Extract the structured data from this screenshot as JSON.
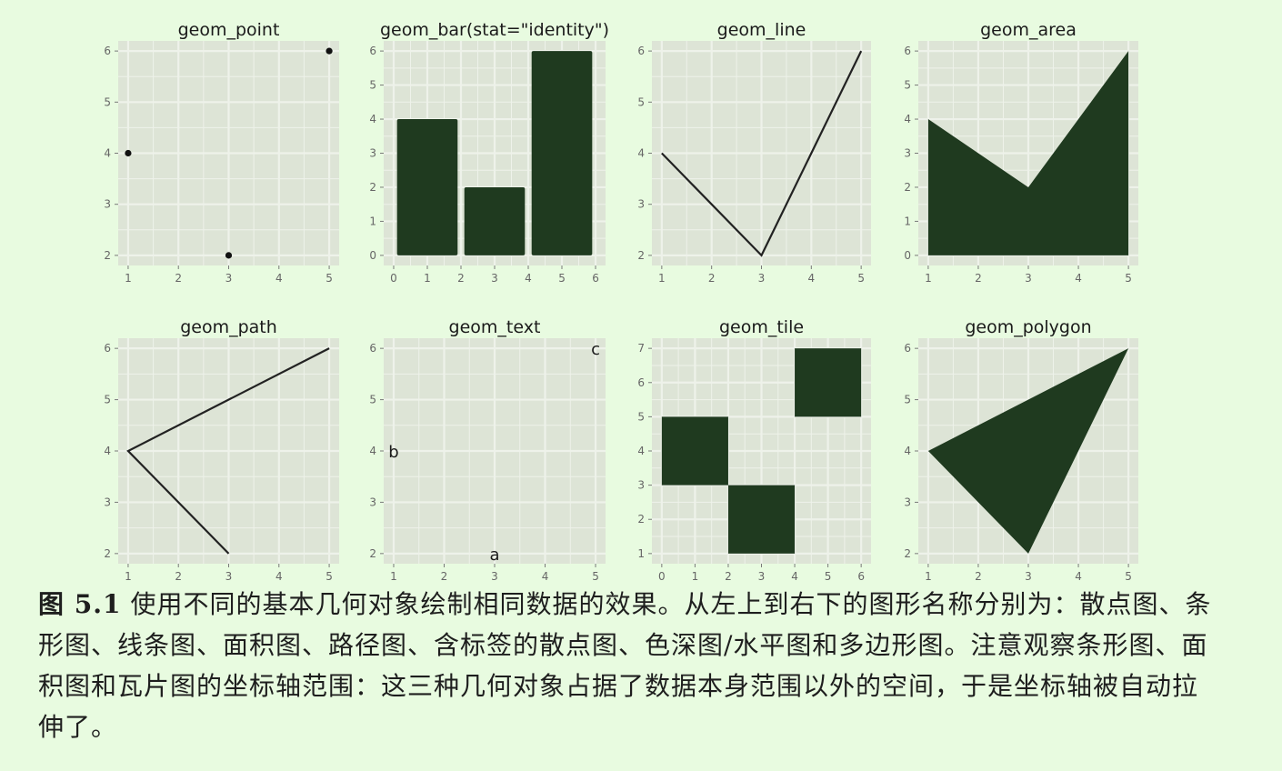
{
  "chart_data": [
    {
      "type": "scatter",
      "title": "geom_point",
      "x": [
        1,
        3,
        5
      ],
      "y": [
        4,
        2,
        6
      ],
      "xlim": [
        1,
        5
      ],
      "ylim": [
        2,
        6
      ],
      "xticks": [
        1,
        2,
        3,
        4,
        5
      ],
      "yticks": [
        2,
        3,
        4,
        5,
        6
      ],
      "grid": true
    },
    {
      "type": "bar",
      "title": "geom_bar(stat=\"identity\")",
      "x": [
        1,
        3,
        5
      ],
      "y": [
        4,
        2,
        6
      ],
      "xlim": [
        0,
        6
      ],
      "ylim": [
        0,
        6
      ],
      "xticks": [
        0,
        1,
        2,
        3,
        4,
        5,
        6
      ],
      "yticks": [
        0,
        1,
        2,
        3,
        4,
        5,
        6
      ],
      "grid": true
    },
    {
      "type": "line",
      "title": "geom_line",
      "x": [
        1,
        3,
        5
      ],
      "y": [
        4,
        2,
        6
      ],
      "xlim": [
        1,
        5
      ],
      "ylim": [
        2,
        6
      ],
      "xticks": [
        1,
        2,
        3,
        4,
        5
      ],
      "yticks": [
        2,
        3,
        4,
        5,
        6
      ],
      "grid": true
    },
    {
      "type": "area",
      "title": "geom_area",
      "x": [
        1,
        3,
        5
      ],
      "y": [
        4,
        2,
        6
      ],
      "xlim": [
        1,
        5
      ],
      "ylim": [
        0,
        6
      ],
      "xticks": [
        1,
        2,
        3,
        4,
        5
      ],
      "yticks": [
        0,
        1,
        2,
        3,
        4,
        5,
        6
      ],
      "grid": true
    },
    {
      "type": "path",
      "title": "geom_path",
      "x": [
        3,
        1,
        5
      ],
      "y": [
        2,
        4,
        6
      ],
      "xlim": [
        1,
        5
      ],
      "ylim": [
        2,
        6
      ],
      "xticks": [
        1,
        2,
        3,
        4,
        5
      ],
      "yticks": [
        2,
        3,
        4,
        5,
        6
      ],
      "grid": true
    },
    {
      "type": "text",
      "title": "geom_text",
      "x": [
        3,
        1,
        5
      ],
      "y": [
        2,
        4,
        6
      ],
      "labels": [
        "a",
        "b",
        "c"
      ],
      "xlim": [
        1,
        5
      ],
      "ylim": [
        2,
        6
      ],
      "xticks": [
        1,
        2,
        3,
        4,
        5
      ],
      "yticks": [
        2,
        3,
        4,
        5,
        6
      ],
      "grid": true
    },
    {
      "type": "tile",
      "title": "geom_tile",
      "x": [
        1,
        3,
        5
      ],
      "y": [
        4,
        2,
        6
      ],
      "xlim": [
        0,
        6
      ],
      "ylim": [
        1,
        7
      ],
      "xticks": [
        0,
        1,
        2,
        3,
        4,
        5,
        6
      ],
      "yticks": [
        1,
        2,
        3,
        4,
        5,
        6,
        7
      ],
      "grid": true
    },
    {
      "type": "polygon",
      "title": "geom_polygon",
      "x": [
        1,
        3,
        5
      ],
      "y": [
        4,
        2,
        6
      ],
      "xlim": [
        1,
        5
      ],
      "ylim": [
        2,
        6
      ],
      "xticks": [
        1,
        2,
        3,
        4,
        5
      ],
      "yticks": [
        2,
        3,
        4,
        5,
        6
      ],
      "grid": true
    }
  ],
  "caption": {
    "label": "图 5.1",
    "text": "使用不同的基本几何对象绘制相同数据的效果。从左上到右下的图形名称分别为：散点图、条形图、线条图、面积图、路径图、含标签的散点图、色深图/水平图和多边形图。注意观察条形图、面积图和瓦片图的坐标轴范围：这三种几何对象占据了数据本身范围以外的空间，于是坐标轴被自动拉伸了。"
  },
  "colors": {
    "panel": "#dde4d6",
    "grid": "#eef2ea",
    "mark": "#1f3a1f",
    "tick": "#7a7a7a"
  }
}
